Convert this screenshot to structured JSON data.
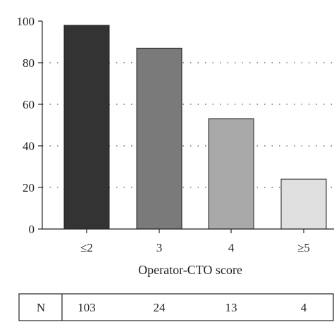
{
  "chart_data": {
    "type": "bar",
    "categories": [
      "≤2",
      "3",
      "4",
      "≥5"
    ],
    "values": [
      98,
      87,
      53,
      24
    ],
    "bar_colors": [
      "#333333",
      "#7a7a7a",
      "#a9a9a9",
      "#e0e0e0"
    ],
    "xlabel": "Operator-CTO score",
    "ylabel": "",
    "ylim": [
      0,
      100
    ],
    "yticks": [
      0,
      20,
      40,
      60,
      80,
      100
    ],
    "grid": "horizontal-dotted",
    "n_row": {
      "label": "N",
      "values": [
        "103",
        "24",
        "13",
        "4"
      ]
    }
  }
}
